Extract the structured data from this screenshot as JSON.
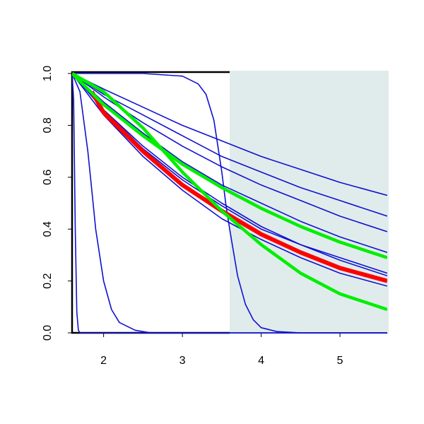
{
  "chart_data": {
    "type": "line",
    "xlim": [
      1.6,
      5.6
    ],
    "xticks": [
      2,
      3,
      4,
      5
    ],
    "ylim": [
      0,
      1
    ],
    "yticks": [
      {
        "value": 0,
        "label": "0.0"
      },
      {
        "value": 0.2,
        "label": "0.2"
      },
      {
        "value": 0.4,
        "label": "0.4"
      },
      {
        "value": 0.6,
        "label": "0.6"
      },
      {
        "value": 0.8,
        "label": "0.8"
      },
      {
        "value": 1,
        "label": "1.0"
      }
    ],
    "highlight_range": [
      3.6,
      5.6
    ],
    "highlight_color": "#e0ecec",
    "series": [
      {
        "color": "#1010d0",
        "line_width": 1.6,
        "x": [
          1.6,
          2,
          2.5,
          3,
          3.5,
          4,
          4.5,
          5,
          5.6
        ],
        "values": [
          1,
          0.94,
          0.87,
          0.8,
          0.74,
          0.68,
          0.63,
          0.58,
          0.53
        ]
      },
      {
        "color": "#1010d0",
        "line_width": 1.6,
        "x": [
          1.6,
          2,
          2.5,
          3,
          3.5,
          4,
          4.5,
          5,
          5.6
        ],
        "values": [
          1,
          0.92,
          0.84,
          0.76,
          0.68,
          0.62,
          0.56,
          0.51,
          0.45
        ]
      },
      {
        "color": "#1010d0",
        "line_width": 1.6,
        "x": [
          1.6,
          2,
          2.5,
          3,
          3.5,
          4,
          4.5,
          5,
          5.6
        ],
        "values": [
          1,
          0.91,
          0.81,
          0.72,
          0.64,
          0.57,
          0.51,
          0.45,
          0.39
        ]
      },
      {
        "color": "#1010d0",
        "line_width": 1.6,
        "x": [
          1.6,
          2,
          2.5,
          3,
          3.5,
          4,
          4.5,
          5,
          5.6
        ],
        "values": [
          1,
          0.89,
          0.77,
          0.66,
          0.57,
          0.5,
          0.43,
          0.37,
          0.31
        ]
      },
      {
        "color": "#1010d0",
        "line_width": 1.6,
        "x": [
          1.6,
          2,
          2.5,
          3,
          3.5,
          4,
          4.5,
          5,
          5.6
        ],
        "values": [
          1,
          0.86,
          0.72,
          0.6,
          0.5,
          0.41,
          0.34,
          0.29,
          0.23
        ]
      },
      {
        "color": "#1010d0",
        "line_width": 1.6,
        "x": [
          1.6,
          2,
          2.5,
          3,
          3.5,
          4,
          4.5,
          5,
          5.6
        ],
        "values": [
          1,
          0.86,
          0.71,
          0.59,
          0.49,
          0.4,
          0.34,
          0.28,
          0.22
        ]
      },
      {
        "color": "#1010d0",
        "line_width": 1.6,
        "x": [
          1.6,
          2,
          2.5,
          3,
          3.5,
          4,
          4.5,
          5,
          5.6
        ],
        "values": [
          1,
          0.84,
          0.68,
          0.55,
          0.44,
          0.36,
          0.29,
          0.23,
          0.18
        ]
      },
      {
        "color": "#1010d0",
        "line_width": 1.6,
        "x": [
          1.6,
          1.62,
          1.64,
          1.66,
          1.68,
          1.7,
          5.6
        ],
        "values": [
          1,
          0.9,
          0.4,
          0.08,
          0.01,
          0,
          0
        ]
      },
      {
        "color": "#1010d0",
        "line_width": 1.6,
        "x": [
          1.6,
          1.7,
          1.8,
          1.85,
          1.9,
          2,
          2.1,
          2.2,
          2.4,
          2.6,
          3,
          5.6
        ],
        "values": [
          1,
          0.93,
          0.7,
          0.55,
          0.4,
          0.2,
          0.09,
          0.04,
          0.01,
          0,
          0,
          0
        ]
      },
      {
        "color": "#1010d0",
        "line_width": 1.6,
        "x": [
          1.6,
          2.5,
          3,
          3.2,
          3.3,
          3.4,
          3.5,
          3.55,
          3.6,
          3.7,
          3.8,
          3.9,
          4,
          4.2,
          4.5,
          5.6
        ],
        "values": [
          1,
          1,
          0.99,
          0.96,
          0.92,
          0.82,
          0.62,
          0.5,
          0.4,
          0.22,
          0.11,
          0.05,
          0.02,
          0.005,
          0,
          0
        ]
      },
      {
        "color": "#ff0000",
        "line_width": 6,
        "x": [
          1.85,
          2,
          2.5,
          3,
          3.5,
          4,
          4.5,
          5,
          5.6
        ],
        "values": [
          0.93,
          0.85,
          0.7,
          0.57,
          0.47,
          0.38,
          0.31,
          0.25,
          0.2
        ]
      },
      {
        "color": "#00ee00",
        "line_width": 4.5,
        "x": [
          1.6,
          2,
          2.5,
          3,
          3.5,
          4,
          4.5,
          5,
          5.6
        ],
        "values": [
          1,
          0.88,
          0.76,
          0.65,
          0.56,
          0.48,
          0.41,
          0.35,
          0.29
        ]
      },
      {
        "color": "#00ee00",
        "line_width": 4.5,
        "x": [
          1.6,
          2,
          2.5,
          3,
          3.5,
          4,
          4.5,
          5,
          5.6
        ],
        "values": [
          1,
          0.93,
          0.79,
          0.62,
          0.47,
          0.34,
          0.23,
          0.15,
          0.09
        ]
      }
    ]
  }
}
